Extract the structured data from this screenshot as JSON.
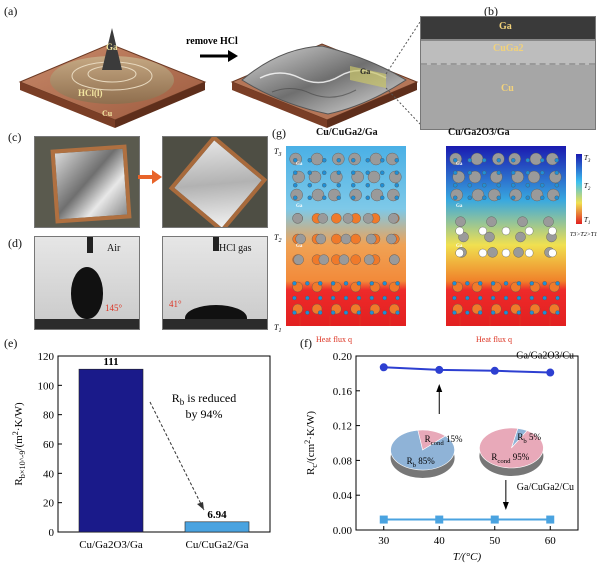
{
  "panels": {
    "a": {
      "label": "(a)",
      "arrow_text": "remove HCl",
      "left_drop_label": "Ga",
      "left_liquid_label": "HCl(l)",
      "left_base_label": "Cu",
      "right_label": "Ga"
    },
    "b": {
      "label": "(b)",
      "layers": [
        "Ga",
        "CuGa2",
        "Cu"
      ]
    },
    "c": {
      "label": "(c)"
    },
    "d": {
      "label": "(d)",
      "left_text": "Air",
      "right_text": "HCl gas",
      "left_angle": "145°",
      "right_angle": "41°"
    },
    "g": {
      "label": "(g)",
      "left_title": "Cu/CuGa2/Ga",
      "right_title": "Cu/Ga2O3/Ga",
      "t_labels": [
        "T",
        "T",
        "T"
      ],
      "t_subs": [
        "3",
        "2",
        "1"
      ],
      "heat_flux": "Heat flux q",
      "legend_labels": [
        "T",
        "T",
        "T"
      ],
      "legend_subs": [
        "3",
        "2",
        "1"
      ],
      "legend_note": "T3>T2>T1",
      "atom_label": "Ga"
    }
  },
  "chart_data": [
    {
      "id": "e",
      "label": "(e)",
      "type": "bar",
      "categories": [
        "Cu/Ga2O3/Ga",
        "Cu/CuGa2/Ga"
      ],
      "values": [
        111,
        6.94
      ],
      "value_labels": [
        "111",
        "6.94"
      ],
      "ylabel": "R_b×10^-9/(m^2·K/W)",
      "ylim": [
        0,
        120
      ],
      "yticks": [
        0,
        20,
        40,
        60,
        80,
        100,
        120
      ],
      "annotation": [
        "R_b is reduced",
        "by 94%"
      ],
      "colors": [
        "#1a1a8a",
        "#4aa3e0"
      ]
    },
    {
      "id": "f",
      "label": "(f)",
      "type": "line",
      "x": [
        30,
        40,
        50,
        60
      ],
      "xlabel": "T/(°C)",
      "ylabel": "R_c/(cm^2·K/W)",
      "xlim": [
        25,
        65
      ],
      "ylim": [
        0,
        0.2
      ],
      "xticks": [
        30,
        40,
        50,
        60
      ],
      "yticks": [
        0.0,
        0.04,
        0.08,
        0.12,
        0.16,
        0.2
      ],
      "series": [
        {
          "name": "Ga/Ga2O3/Cu",
          "values": [
            0.187,
            0.184,
            0.183,
            0.181
          ],
          "color": "#2d3fd1"
        },
        {
          "name": "Ga/CuGa2/Cu",
          "values": [
            0.012,
            0.012,
            0.012,
            0.012
          ],
          "color": "#4aa3e0"
        }
      ],
      "pies": [
        {
          "slices": [
            {
              "label": "R_cond 15%",
              "value": 15,
              "color": "#e8a9b9"
            },
            {
              "label": "R_b 85%",
              "value": 85,
              "color": "#8fb3d7"
            }
          ]
        },
        {
          "slices": [
            {
              "label": "R_b 5%",
              "value": 5,
              "color": "#8fb3d7"
            },
            {
              "label": "R_cond 95%",
              "value": 95,
              "color": "#e8a9b9"
            }
          ]
        }
      ]
    }
  ]
}
